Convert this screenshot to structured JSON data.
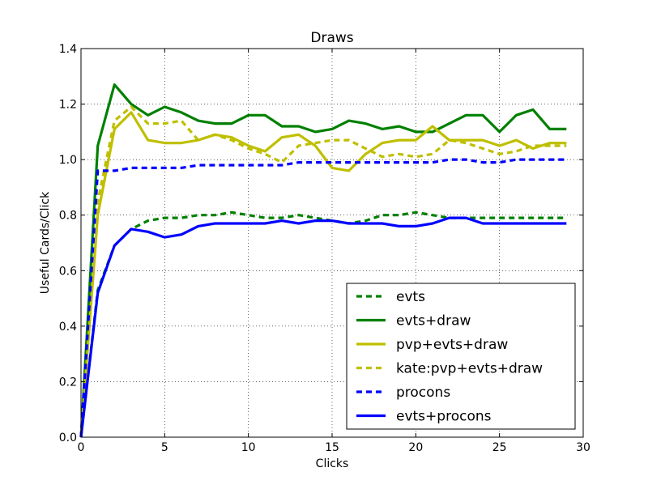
{
  "chart_data": {
    "type": "line",
    "title": "Draws",
    "xlabel": "Clicks",
    "ylabel": "Useful Cards/Click",
    "xlim": [
      0,
      30
    ],
    "ylim": [
      0.0,
      1.4
    ],
    "xticks": [
      0,
      5,
      10,
      15,
      20,
      25,
      30
    ],
    "yticks": [
      0.0,
      0.2,
      0.4,
      0.6,
      0.8,
      1.0,
      1.2,
      1.4
    ],
    "xtick_labels": [
      "0",
      "5",
      "10",
      "15",
      "20",
      "25",
      "30"
    ],
    "ytick_labels": [
      "0.0",
      "0.2",
      "0.4",
      "0.6",
      "0.8",
      "1.0",
      "1.2",
      "1.4"
    ],
    "grid": true,
    "legend_position": "lower-right",
    "x": [
      0,
      1,
      2,
      3,
      4,
      5,
      6,
      7,
      8,
      9,
      10,
      11,
      12,
      13,
      14,
      15,
      16,
      17,
      18,
      19,
      20,
      21,
      22,
      23,
      24,
      25,
      26,
      27,
      28,
      29
    ],
    "series": [
      {
        "name": "evts",
        "color": "#008000",
        "style": "dashed",
        "values": [
          0.0,
          0.53,
          0.69,
          0.75,
          0.78,
          0.79,
          0.79,
          0.8,
          0.8,
          0.81,
          0.8,
          0.79,
          0.79,
          0.8,
          0.79,
          0.78,
          0.77,
          0.78,
          0.8,
          0.8,
          0.81,
          0.8,
          0.79,
          0.79,
          0.79,
          0.79,
          0.79,
          0.79,
          0.79,
          0.79
        ]
      },
      {
        "name": "evts+draw",
        "color": "#008000",
        "style": "solid",
        "values": [
          0.0,
          1.05,
          1.27,
          1.2,
          1.16,
          1.19,
          1.17,
          1.14,
          1.13,
          1.13,
          1.16,
          1.16,
          1.12,
          1.12,
          1.1,
          1.11,
          1.14,
          1.13,
          1.11,
          1.12,
          1.1,
          1.1,
          1.13,
          1.16,
          1.16,
          1.1,
          1.16,
          1.18,
          1.11,
          1.11
        ]
      },
      {
        "name": "pvp+evts+draw",
        "color": "#bfbf00",
        "style": "solid",
        "values": [
          0.0,
          0.8,
          1.11,
          1.17,
          1.07,
          1.06,
          1.06,
          1.07,
          1.09,
          1.08,
          1.05,
          1.03,
          1.08,
          1.09,
          1.05,
          0.97,
          0.96,
          1.02,
          1.06,
          1.07,
          1.07,
          1.12,
          1.07,
          1.07,
          1.07,
          1.05,
          1.07,
          1.04,
          1.06,
          1.06
        ]
      },
      {
        "name": "kate:pvp+evts+draw",
        "color": "#bfbf00",
        "style": "dashed",
        "values": [
          0.0,
          0.85,
          1.14,
          1.19,
          1.13,
          1.13,
          1.14,
          1.07,
          1.09,
          1.07,
          1.04,
          1.02,
          0.99,
          1.05,
          1.06,
          1.07,
          1.07,
          1.04,
          1.01,
          1.02,
          1.01,
          1.02,
          1.07,
          1.06,
          1.04,
          1.02,
          1.03,
          1.05,
          1.05,
          1.05
        ]
      },
      {
        "name": "procons",
        "color": "#0000ff",
        "style": "dashed",
        "values": [
          0.0,
          0.96,
          0.96,
          0.97,
          0.97,
          0.97,
          0.97,
          0.98,
          0.98,
          0.98,
          0.98,
          0.98,
          0.98,
          0.99,
          0.99,
          0.99,
          0.99,
          0.99,
          0.99,
          0.99,
          0.99,
          0.99,
          1.0,
          1.0,
          0.99,
          0.99,
          1.0,
          1.0,
          1.0,
          1.0
        ]
      },
      {
        "name": "evts+procons",
        "color": "#0000ff",
        "style": "solid",
        "values": [
          0.0,
          0.52,
          0.69,
          0.75,
          0.74,
          0.72,
          0.73,
          0.76,
          0.77,
          0.77,
          0.77,
          0.77,
          0.78,
          0.77,
          0.78,
          0.78,
          0.77,
          0.77,
          0.77,
          0.76,
          0.76,
          0.77,
          0.79,
          0.79,
          0.77,
          0.77,
          0.77,
          0.77,
          0.77,
          0.77
        ]
      }
    ]
  }
}
